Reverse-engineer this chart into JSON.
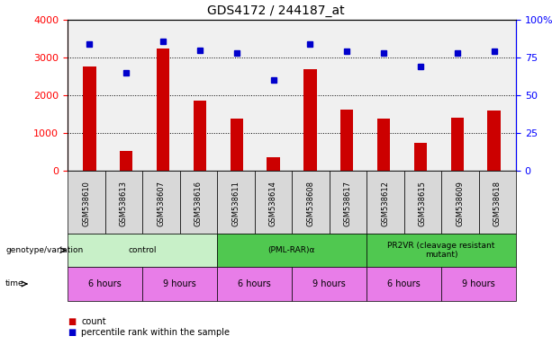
{
  "title": "GDS4172 / 244187_at",
  "samples": [
    "GSM538610",
    "GSM538613",
    "GSM538607",
    "GSM538616",
    "GSM538611",
    "GSM538614",
    "GSM538608",
    "GSM538617",
    "GSM538612",
    "GSM538615",
    "GSM538609",
    "GSM538618"
  ],
  "counts": [
    2750,
    520,
    3250,
    1850,
    1380,
    350,
    2680,
    1620,
    1380,
    730,
    1400,
    1600
  ],
  "percentile_ranks": [
    84,
    65,
    86,
    80,
    78,
    60,
    84,
    79,
    78,
    69,
    78,
    79
  ],
  "group_labels": [
    "control",
    "(PML-RAR)α",
    "PR2VR (cleavage resistant\nmutant)"
  ],
  "group_starts": [
    0,
    4,
    8
  ],
  "group_ends": [
    4,
    8,
    12
  ],
  "group_colors": [
    "#c8f0c8",
    "#50c850",
    "#50c850"
  ],
  "time_labels": [
    "6 hours",
    "9 hours",
    "6 hours",
    "9 hours",
    "6 hours",
    "9 hours"
  ],
  "time_starts": [
    0,
    2,
    4,
    6,
    8,
    10
  ],
  "time_ends": [
    2,
    4,
    6,
    8,
    10,
    12
  ],
  "time_color": "#e87de8",
  "bar_color": "#cc0000",
  "dot_color": "#0000cc",
  "ylim_left": [
    0,
    4000
  ],
  "ylim_right": [
    0,
    100
  ],
  "yticks_left": [
    0,
    1000,
    2000,
    3000,
    4000
  ],
  "yticks_right": [
    0,
    25,
    50,
    75,
    100
  ],
  "ytick_labels_right": [
    "0",
    "25",
    "50",
    "75",
    "100%"
  ],
  "xtick_bg": "#d8d8d8",
  "background_color": "#ffffff"
}
